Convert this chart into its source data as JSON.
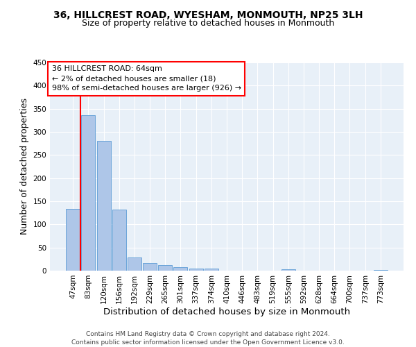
{
  "title": "36, HILLCREST ROAD, WYESHAM, MONMOUTH, NP25 3LH",
  "subtitle": "Size of property relative to detached houses in Monmouth",
  "xlabel": "Distribution of detached houses by size in Monmouth",
  "ylabel": "Number of detached properties",
  "footer_line1": "Contains HM Land Registry data © Crown copyright and database right 2024.",
  "footer_line2": "Contains public sector information licensed under the Open Government Licence v3.0.",
  "annotation_title": "36 HILLCREST ROAD: 64sqm",
  "annotation_line1": "← 2% of detached houses are smaller (18)",
  "annotation_line2": "98% of semi-detached houses are larger (926) →",
  "bar_categories": [
    "47sqm",
    "83sqm",
    "120sqm",
    "156sqm",
    "192sqm",
    "229sqm",
    "265sqm",
    "301sqm",
    "337sqm",
    "374sqm",
    "410sqm",
    "446sqm",
    "483sqm",
    "519sqm",
    "555sqm",
    "592sqm",
    "628sqm",
    "664sqm",
    "700sqm",
    "737sqm",
    "773sqm"
  ],
  "bar_values": [
    133,
    336,
    280,
    132,
    28,
    17,
    12,
    7,
    5,
    4,
    0,
    0,
    0,
    0,
    3,
    0,
    0,
    0,
    0,
    0,
    2
  ],
  "bar_color": "#aec6e8",
  "bar_edge_color": "#5b9bd5",
  "background_color": "#e8f0f8",
  "ylim": [
    0,
    450
  ],
  "yticks": [
    0,
    50,
    100,
    150,
    200,
    250,
    300,
    350,
    400,
    450
  ],
  "title_fontsize": 10,
  "subtitle_fontsize": 9,
  "axis_label_fontsize": 9,
  "tick_fontsize": 7.5,
  "footer_fontsize": 6.5
}
